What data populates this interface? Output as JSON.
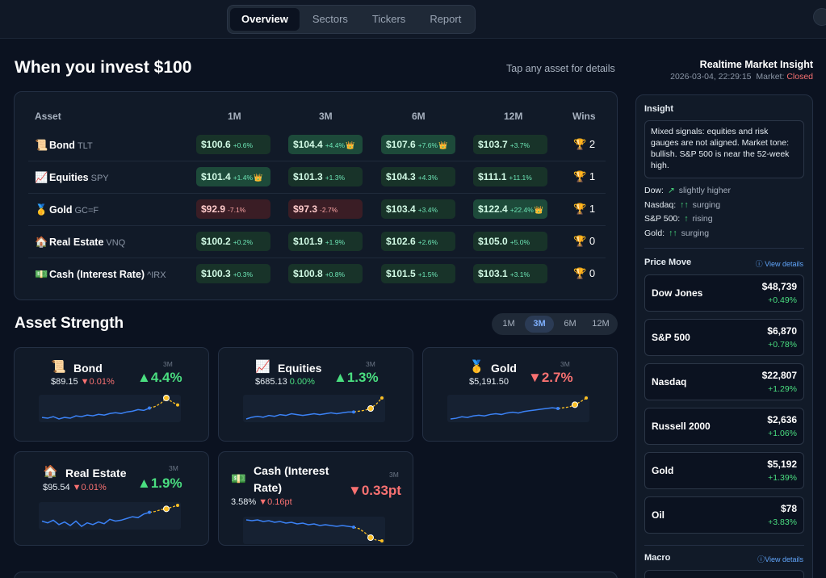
{
  "nav": {
    "tabs": [
      {
        "label": "Overview",
        "active": true
      },
      {
        "label": "Sectors",
        "active": false
      },
      {
        "label": "Tickers",
        "active": false
      },
      {
        "label": "Report",
        "active": false
      }
    ]
  },
  "invest": {
    "title": "When you invest $100",
    "hint": "Tap any asset for details",
    "columns": [
      "Asset",
      "1M",
      "3M",
      "6M",
      "12M",
      "Wins"
    ],
    "rows": [
      {
        "icon": "📜",
        "name": "Bond",
        "ticker": "TLT",
        "wins": "2",
        "cells": [
          {
            "value": "$100.6",
            "change": "+0.6%",
            "best": false,
            "dir": "pos"
          },
          {
            "value": "$104.4",
            "change": "+4.4%",
            "best": true,
            "dir": "pos"
          },
          {
            "value": "$107.6",
            "change": "+7.6%",
            "best": true,
            "dir": "pos"
          },
          {
            "value": "$103.7",
            "change": "+3.7%",
            "best": false,
            "dir": "pos"
          }
        ]
      },
      {
        "icon": "📈",
        "name": "Equities",
        "ticker": "SPY",
        "wins": "1",
        "cells": [
          {
            "value": "$101.4",
            "change": "+1.4%",
            "best": true,
            "dir": "pos"
          },
          {
            "value": "$101.3",
            "change": "+1.3%",
            "best": false,
            "dir": "pos"
          },
          {
            "value": "$104.3",
            "change": "+4.3%",
            "best": false,
            "dir": "pos"
          },
          {
            "value": "$111.1",
            "change": "+11.1%",
            "best": false,
            "dir": "pos"
          }
        ]
      },
      {
        "icon": "🥇",
        "name": "Gold",
        "ticker": "GC=F",
        "wins": "1",
        "cells": [
          {
            "value": "$92.9",
            "change": "-7.1%",
            "best": false,
            "dir": "neg"
          },
          {
            "value": "$97.3",
            "change": "-2.7%",
            "best": false,
            "dir": "neg"
          },
          {
            "value": "$103.4",
            "change": "+3.4%",
            "best": false,
            "dir": "pos"
          },
          {
            "value": "$122.4",
            "change": "+22.4%",
            "best": true,
            "dir": "pos"
          }
        ]
      },
      {
        "icon": "🏠",
        "name": "Real Estate",
        "ticker": "VNQ",
        "wins": "0",
        "cells": [
          {
            "value": "$100.2",
            "change": "+0.2%",
            "best": false,
            "dir": "pos"
          },
          {
            "value": "$101.9",
            "change": "+1.9%",
            "best": false,
            "dir": "pos"
          },
          {
            "value": "$102.6",
            "change": "+2.6%",
            "best": false,
            "dir": "pos"
          },
          {
            "value": "$105.0",
            "change": "+5.0%",
            "best": false,
            "dir": "pos"
          }
        ]
      },
      {
        "icon": "💵",
        "name": "Cash (Interest Rate)",
        "ticker": "^IRX",
        "wins": "0",
        "cells": [
          {
            "value": "$100.3",
            "change": "+0.3%",
            "best": false,
            "dir": "pos"
          },
          {
            "value": "$100.8",
            "change": "+0.8%",
            "best": false,
            "dir": "pos"
          },
          {
            "value": "$101.5",
            "change": "+1.5%",
            "best": false,
            "dir": "pos"
          },
          {
            "value": "$103.1",
            "change": "+3.1%",
            "best": false,
            "dir": "pos"
          }
        ]
      }
    ]
  },
  "strength": {
    "title": "Asset Strength",
    "periods": [
      {
        "label": "1M",
        "active": false
      },
      {
        "label": "3M",
        "active": true
      },
      {
        "label": "6M",
        "active": false
      },
      {
        "label": "12M",
        "active": false
      }
    ],
    "cards": [
      {
        "icon": "📜",
        "name": "Bond",
        "price": "$89.15",
        "change": "▼0.01%",
        "change_dir": "neg",
        "big": "▲4.4%",
        "big_dir": "pos",
        "period": "3M",
        "spark": [
          20,
          19,
          21,
          18,
          20,
          19,
          22,
          21,
          23,
          22,
          24,
          23,
          25,
          26,
          25,
          27,
          28,
          30,
          29,
          32,
          34,
          38,
          45,
          40,
          36
        ]
      },
      {
        "icon": "📈",
        "name": "Equities",
        "price": "$685.13",
        "change": "0.00%",
        "change_dir": "flat",
        "big": "▲1.3%",
        "big_dir": "pos",
        "period": "3M",
        "spark": [
          20,
          22,
          23,
          22,
          24,
          23,
          25,
          24,
          26,
          25,
          24,
          25,
          26,
          25,
          26,
          27,
          26,
          27,
          28,
          28,
          29,
          30,
          32,
          37,
          44
        ]
      },
      {
        "icon": "🥇",
        "name": "Gold",
        "price": "$5,191.50",
        "change": "",
        "change_dir": "flat",
        "big": "▼2.7%",
        "big_dir": "neg",
        "period": "3M",
        "spark": [
          18,
          19,
          21,
          20,
          22,
          23,
          22,
          24,
          25,
          24,
          26,
          27,
          26,
          28,
          29,
          30,
          31,
          32,
          33,
          32,
          33,
          34,
          37,
          41,
          46
        ]
      },
      {
        "icon": "🏠",
        "name": "Real Estate",
        "price": "$95.54",
        "change": "▼0.01%",
        "change_dir": "neg",
        "big": "▲1.9%",
        "big_dir": "pos",
        "period": "3M",
        "spark": [
          22,
          20,
          23,
          18,
          21,
          17,
          22,
          16,
          20,
          18,
          21,
          19,
          24,
          22,
          23,
          25,
          27,
          26,
          30,
          32,
          33,
          35,
          36,
          38,
          40
        ]
      },
      {
        "icon": "💵",
        "name": "Cash (Interest Rate)",
        "price": "3.58%",
        "change": "▼0.16pt",
        "change_dir": "neg",
        "big": "▼0.33pt",
        "big_dir": "neg",
        "period": "3M",
        "spark": [
          40,
          39,
          40,
          38,
          39,
          37,
          38,
          36,
          37,
          35,
          36,
          34,
          35,
          33,
          34,
          33,
          32,
          33,
          32,
          31,
          29,
          24,
          18,
          15,
          14
        ]
      }
    ]
  },
  "sidebar": {
    "title": "Realtime Market Insight",
    "timestamp": "2026-03-04, 22:29:15",
    "market_label": "Market:",
    "market_status": "Closed",
    "insight_heading": "Insight",
    "insight_text": "Mixed signals: equities and risk gauges are not aligned. Market tone: bullish. S&P 500 is near the 52-week high.",
    "indicators": [
      {
        "label": "Dow:",
        "arrow": "↗",
        "text": "slightly higher"
      },
      {
        "label": "Nasdaq:",
        "arrow": "↑↑",
        "text": "surging"
      },
      {
        "label": "S&P 500:",
        "arrow": "↑",
        "text": "rising"
      },
      {
        "label": "Gold:",
        "arrow": "↑↑",
        "text": "surging"
      }
    ],
    "price_move_heading": "Price Move",
    "view_details": "ⓘ View details",
    "markets": [
      {
        "name": "Dow Jones",
        "value": "$48,739",
        "change": "+0.49%"
      },
      {
        "name": "S&P 500",
        "value": "$6,870",
        "change": "+0.78%"
      },
      {
        "name": "Nasdaq",
        "value": "$22,807",
        "change": "+1.29%"
      },
      {
        "name": "Russell 2000",
        "value": "$2,636",
        "change": "+1.06%"
      },
      {
        "name": "Gold",
        "value": "$5,192",
        "change": "+1.39%"
      },
      {
        "name": "Oil",
        "value": "$78",
        "change": "+3.83%"
      }
    ],
    "macro_heading": "Macro",
    "macro_view_details": "ⓘView details"
  },
  "colors": {
    "background": "#0b1220",
    "card": "#111a28",
    "positive": "#4ade80",
    "negative": "#f87171",
    "spark_line": "#3b82f6",
    "spark_projection": "#fbbf24"
  }
}
